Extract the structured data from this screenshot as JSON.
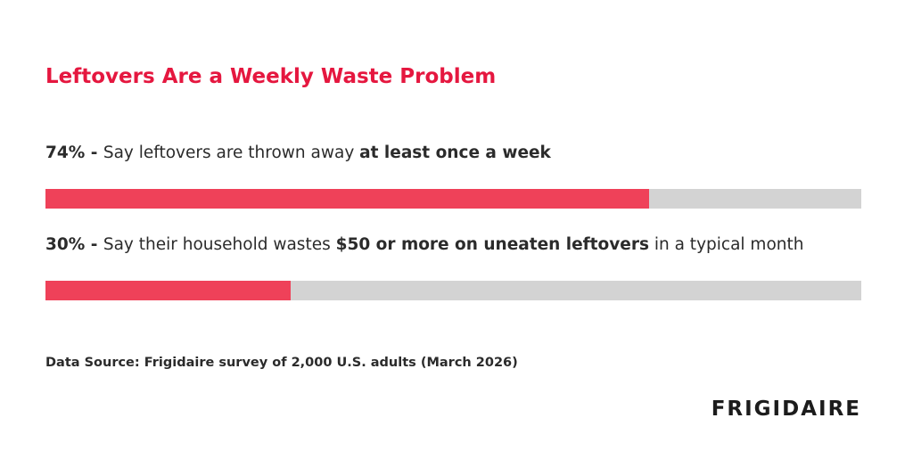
{
  "chart_data": {
    "type": "progress",
    "title": "Leftovers Are a Weekly Waste Problem",
    "labels": [
      [
        {
          "text": " - ",
          "bold": true
        },
        {
          "text": "Say leftovers are thrown away ",
          "bold": false
        },
        {
          "text": "at least once a week",
          "bold": true
        }
      ],
      [
        {
          "text": " - ",
          "bold": true
        },
        {
          "text": "Say their household wastes ",
          "bold": false
        },
        {
          "text": "$50 or more on uneaten leftovers",
          "bold": true
        },
        {
          "text": " in a typical month",
          "bold": false
        }
      ]
    ],
    "values": [
      74,
      30
    ],
    "value_labels": [
      "74%",
      "30%"
    ],
    "xlim": [
      0,
      100
    ],
    "color": "#ef4159",
    "track_color": "#d3d3d3",
    "source": "Data Source: Frigidaire survey of 2,000 U.S. adults (March 2026)",
    "brand": "FRIGIDAIRE"
  }
}
